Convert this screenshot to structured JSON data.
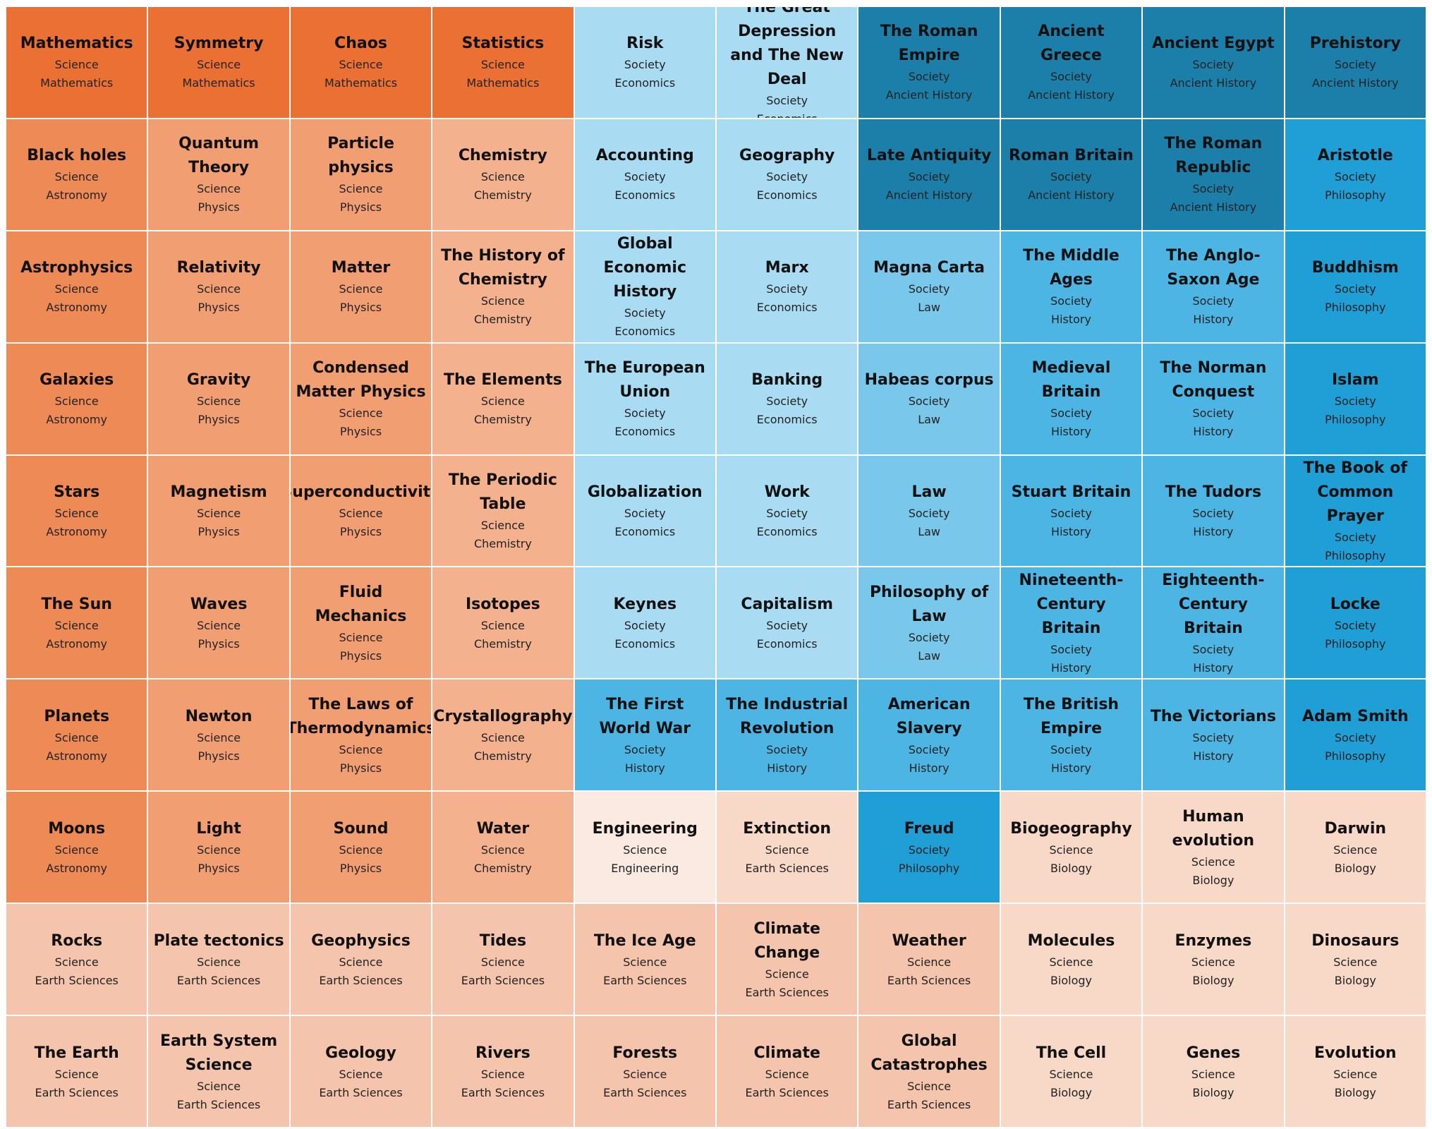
{
  "colors": {
    "o1": "#ea7133",
    "o2": "#ee8a55",
    "o3": "#f19e72",
    "o4": "#f3b18e",
    "p1": "#f4c5ac",
    "p2": "#f8d8c6",
    "p3": "#fbeae1",
    "b1": "#1b7faa",
    "b2": "#209ed6",
    "b3": "#4cb5e3",
    "b4": "#79c7ea",
    "b5": "#a9dcf2"
  },
  "topics": [
    {
      "title": "Mathematics",
      "domain": "Science",
      "subject": "Mathematics",
      "color": "o1"
    },
    {
      "title": "Symmetry",
      "domain": "Science",
      "subject": "Mathematics",
      "color": "o1"
    },
    {
      "title": "Chaos",
      "domain": "Science",
      "subject": "Mathematics",
      "color": "o1"
    },
    {
      "title": "Statistics",
      "domain": "Science",
      "subject": "Mathematics",
      "color": "o1"
    },
    {
      "title": "Risk",
      "domain": "Society",
      "subject": "Economics",
      "color": "b5"
    },
    {
      "title": "The Great Depression and The New Deal",
      "domain": "Society",
      "subject": "Economics",
      "color": "b5"
    },
    {
      "title": "The Roman Empire",
      "domain": "Society",
      "subject": "Ancient History",
      "color": "b1"
    },
    {
      "title": "Ancient Greece",
      "domain": "Society",
      "subject": "Ancient History",
      "color": "b1"
    },
    {
      "title": "Ancient Egypt",
      "domain": "Society",
      "subject": "Ancient History",
      "color": "b1"
    },
    {
      "title": "Prehistory",
      "domain": "Society",
      "subject": "Ancient History",
      "color": "b1"
    },
    {
      "title": "Black holes",
      "domain": "Science",
      "subject": "Astronomy",
      "color": "o2"
    },
    {
      "title": "Quantum Theory",
      "domain": "Science",
      "subject": "Physics",
      "color": "o3"
    },
    {
      "title": "Particle physics",
      "domain": "Science",
      "subject": "Physics",
      "color": "o3"
    },
    {
      "title": "Chemistry",
      "domain": "Science",
      "subject": "Chemistry",
      "color": "o4"
    },
    {
      "title": "Accounting",
      "domain": "Society",
      "subject": "Economics",
      "color": "b5"
    },
    {
      "title": "Geography",
      "domain": "Society",
      "subject": "Economics",
      "color": "b5"
    },
    {
      "title": "Late Antiquity",
      "domain": "Society",
      "subject": "Ancient History",
      "color": "b1"
    },
    {
      "title": "Roman Britain",
      "domain": "Society",
      "subject": "Ancient History",
      "color": "b1"
    },
    {
      "title": "The Roman Republic",
      "domain": "Society",
      "subject": "Ancient History",
      "color": "b1"
    },
    {
      "title": "Aristotle",
      "domain": "Society",
      "subject": "Philosophy",
      "color": "b2"
    },
    {
      "title": "Astrophysics",
      "domain": "Science",
      "subject": "Astronomy",
      "color": "o2"
    },
    {
      "title": "Relativity",
      "domain": "Science",
      "subject": "Physics",
      "color": "o3"
    },
    {
      "title": "Matter",
      "domain": "Science",
      "subject": "Physics",
      "color": "o3"
    },
    {
      "title": "The History of Chemistry",
      "domain": "Science",
      "subject": "Chemistry",
      "color": "o4"
    },
    {
      "title": "Global Economic History",
      "domain": "Society",
      "subject": "Economics",
      "color": "b5"
    },
    {
      "title": "Marx",
      "domain": "Society",
      "subject": "Economics",
      "color": "b5"
    },
    {
      "title": "Magna Carta",
      "domain": "Society",
      "subject": "Law",
      "color": "b4"
    },
    {
      "title": "The Middle Ages",
      "domain": "Society",
      "subject": "History",
      "color": "b3"
    },
    {
      "title": "The Anglo-Saxon Age",
      "domain": "Society",
      "subject": "History",
      "color": "b3"
    },
    {
      "title": "Buddhism",
      "domain": "Society",
      "subject": "Philosophy",
      "color": "b2"
    },
    {
      "title": "Galaxies",
      "domain": "Science",
      "subject": "Astronomy",
      "color": "o2"
    },
    {
      "title": "Gravity",
      "domain": "Science",
      "subject": "Physics",
      "color": "o3"
    },
    {
      "title": "Condensed Matter Physics",
      "domain": "Science",
      "subject": "Physics",
      "color": "o3"
    },
    {
      "title": "The Elements",
      "domain": "Science",
      "subject": "Chemistry",
      "color": "o4"
    },
    {
      "title": "The European Union",
      "domain": "Society",
      "subject": "Economics",
      "color": "b5"
    },
    {
      "title": "Banking",
      "domain": "Society",
      "subject": "Economics",
      "color": "b5"
    },
    {
      "title": "Habeas corpus",
      "domain": "Society",
      "subject": "Law",
      "color": "b4"
    },
    {
      "title": "Medieval Britain",
      "domain": "Society",
      "subject": "History",
      "color": "b3"
    },
    {
      "title": "The Norman Conquest",
      "domain": "Society",
      "subject": "History",
      "color": "b3"
    },
    {
      "title": "Islam",
      "domain": "Society",
      "subject": "Philosophy",
      "color": "b2"
    },
    {
      "title": "Stars",
      "domain": "Science",
      "subject": "Astronomy",
      "color": "o2"
    },
    {
      "title": "Magnetism",
      "domain": "Science",
      "subject": "Physics",
      "color": "o3"
    },
    {
      "title": "Superconductivity",
      "domain": "Science",
      "subject": "Physics",
      "color": "o3"
    },
    {
      "title": "The Periodic Table",
      "domain": "Science",
      "subject": "Chemistry",
      "color": "o4"
    },
    {
      "title": "Globalization",
      "domain": "Society",
      "subject": "Economics",
      "color": "b5"
    },
    {
      "title": "Work",
      "domain": "Society",
      "subject": "Economics",
      "color": "b5"
    },
    {
      "title": "Law",
      "domain": "Society",
      "subject": "Law",
      "color": "b4"
    },
    {
      "title": "Stuart Britain",
      "domain": "Society",
      "subject": "History",
      "color": "b3"
    },
    {
      "title": "The Tudors",
      "domain": "Society",
      "subject": "History",
      "color": "b3"
    },
    {
      "title": "The Book of Common Prayer",
      "domain": "Society",
      "subject": "Philosophy",
      "color": "b2"
    },
    {
      "title": "The Sun",
      "domain": "Science",
      "subject": "Astronomy",
      "color": "o2"
    },
    {
      "title": "Waves",
      "domain": "Science",
      "subject": "Physics",
      "color": "o3"
    },
    {
      "title": "Fluid Mechanics",
      "domain": "Science",
      "subject": "Physics",
      "color": "o3"
    },
    {
      "title": "Isotopes",
      "domain": "Science",
      "subject": "Chemistry",
      "color": "o4"
    },
    {
      "title": "Keynes",
      "domain": "Society",
      "subject": "Economics",
      "color": "b5"
    },
    {
      "title": "Capitalism",
      "domain": "Society",
      "subject": "Economics",
      "color": "b5"
    },
    {
      "title": "Philosophy of Law",
      "domain": "Society",
      "subject": "Law",
      "color": "b4"
    },
    {
      "title": "Nineteenth-Century Britain",
      "domain": "Society",
      "subject": "History",
      "color": "b3"
    },
    {
      "title": "Eighteenth-Century Britain",
      "domain": "Society",
      "subject": "History",
      "color": "b3"
    },
    {
      "title": "Locke",
      "domain": "Society",
      "subject": "Philosophy",
      "color": "b2"
    },
    {
      "title": "Planets",
      "domain": "Science",
      "subject": "Astronomy",
      "color": "o2"
    },
    {
      "title": "Newton",
      "domain": "Science",
      "subject": "Physics",
      "color": "o3"
    },
    {
      "title": "The Laws of Thermodynamics",
      "domain": "Science",
      "subject": "Physics",
      "color": "o3"
    },
    {
      "title": "Crystallography",
      "domain": "Science",
      "subject": "Chemistry",
      "color": "o4"
    },
    {
      "title": "The First World War",
      "domain": "Society",
      "subject": "History",
      "color": "b3"
    },
    {
      "title": "The Industrial Revolution",
      "domain": "Society",
      "subject": "History",
      "color": "b3"
    },
    {
      "title": "American Slavery",
      "domain": "Society",
      "subject": "History",
      "color": "b3"
    },
    {
      "title": "The British Empire",
      "domain": "Society",
      "subject": "History",
      "color": "b3"
    },
    {
      "title": "The Victorians",
      "domain": "Society",
      "subject": "History",
      "color": "b3"
    },
    {
      "title": "Adam Smith",
      "domain": "Society",
      "subject": "Philosophy",
      "color": "b2"
    },
    {
      "title": "Moons",
      "domain": "Science",
      "subject": "Astronomy",
      "color": "o2"
    },
    {
      "title": "Light",
      "domain": "Science",
      "subject": "Physics",
      "color": "o3"
    },
    {
      "title": "Sound",
      "domain": "Science",
      "subject": "Physics",
      "color": "o3"
    },
    {
      "title": "Water",
      "domain": "Science",
      "subject": "Chemistry",
      "color": "o4"
    },
    {
      "title": "Engineering",
      "domain": "Science",
      "subject": "Engineering",
      "color": "p3"
    },
    {
      "title": "Extinction",
      "domain": "Science",
      "subject": "Earth Sciences",
      "color": "p2"
    },
    {
      "title": "Freud",
      "domain": "Society",
      "subject": "Philosophy",
      "color": "b2"
    },
    {
      "title": "Biogeography",
      "domain": "Science",
      "subject": "Biology",
      "color": "p2"
    },
    {
      "title": "Human evolution",
      "domain": "Science",
      "subject": "Biology",
      "color": "p2"
    },
    {
      "title": "Darwin",
      "domain": "Science",
      "subject": "Biology",
      "color": "p2"
    },
    {
      "title": "Rocks",
      "domain": "Science",
      "subject": "Earth Sciences",
      "color": "p1"
    },
    {
      "title": "Plate tectonics",
      "domain": "Science",
      "subject": "Earth Sciences",
      "color": "p1"
    },
    {
      "title": "Geophysics",
      "domain": "Science",
      "subject": "Earth Sciences",
      "color": "p1"
    },
    {
      "title": "Tides",
      "domain": "Science",
      "subject": "Earth Sciences",
      "color": "p1"
    },
    {
      "title": "The Ice Age",
      "domain": "Science",
      "subject": "Earth Sciences",
      "color": "p1"
    },
    {
      "title": "Climate Change",
      "domain": "Science",
      "subject": "Earth Sciences",
      "color": "p1"
    },
    {
      "title": "Weather",
      "domain": "Science",
      "subject": "Earth Sciences",
      "color": "p1"
    },
    {
      "title": "Molecules",
      "domain": "Science",
      "subject": "Biology",
      "color": "p2"
    },
    {
      "title": "Enzymes",
      "domain": "Science",
      "subject": "Biology",
      "color": "p2"
    },
    {
      "title": "Dinosaurs",
      "domain": "Science",
      "subject": "Biology",
      "color": "p2"
    },
    {
      "title": "The Earth",
      "domain": "Science",
      "subject": "Earth Sciences",
      "color": "p1"
    },
    {
      "title": "Earth System Science",
      "domain": "Science",
      "subject": "Earth Sciences",
      "color": "p1"
    },
    {
      "title": "Geology",
      "domain": "Science",
      "subject": "Earth Sciences",
      "color": "p1"
    },
    {
      "title": "Rivers",
      "domain": "Science",
      "subject": "Earth Sciences",
      "color": "p1"
    },
    {
      "title": "Forests",
      "domain": "Science",
      "subject": "Earth Sciences",
      "color": "p1"
    },
    {
      "title": "Climate",
      "domain": "Science",
      "subject": "Earth Sciences",
      "color": "p1"
    },
    {
      "title": "Global Catastrophes",
      "domain": "Science",
      "subject": "Earth Sciences",
      "color": "p1"
    },
    {
      "title": "The Cell",
      "domain": "Science",
      "subject": "Biology",
      "color": "p2"
    },
    {
      "title": "Genes",
      "domain": "Science",
      "subject": "Biology",
      "color": "p2"
    },
    {
      "title": "Evolution",
      "domain": "Science",
      "subject": "Biology",
      "color": "p2"
    }
  ]
}
